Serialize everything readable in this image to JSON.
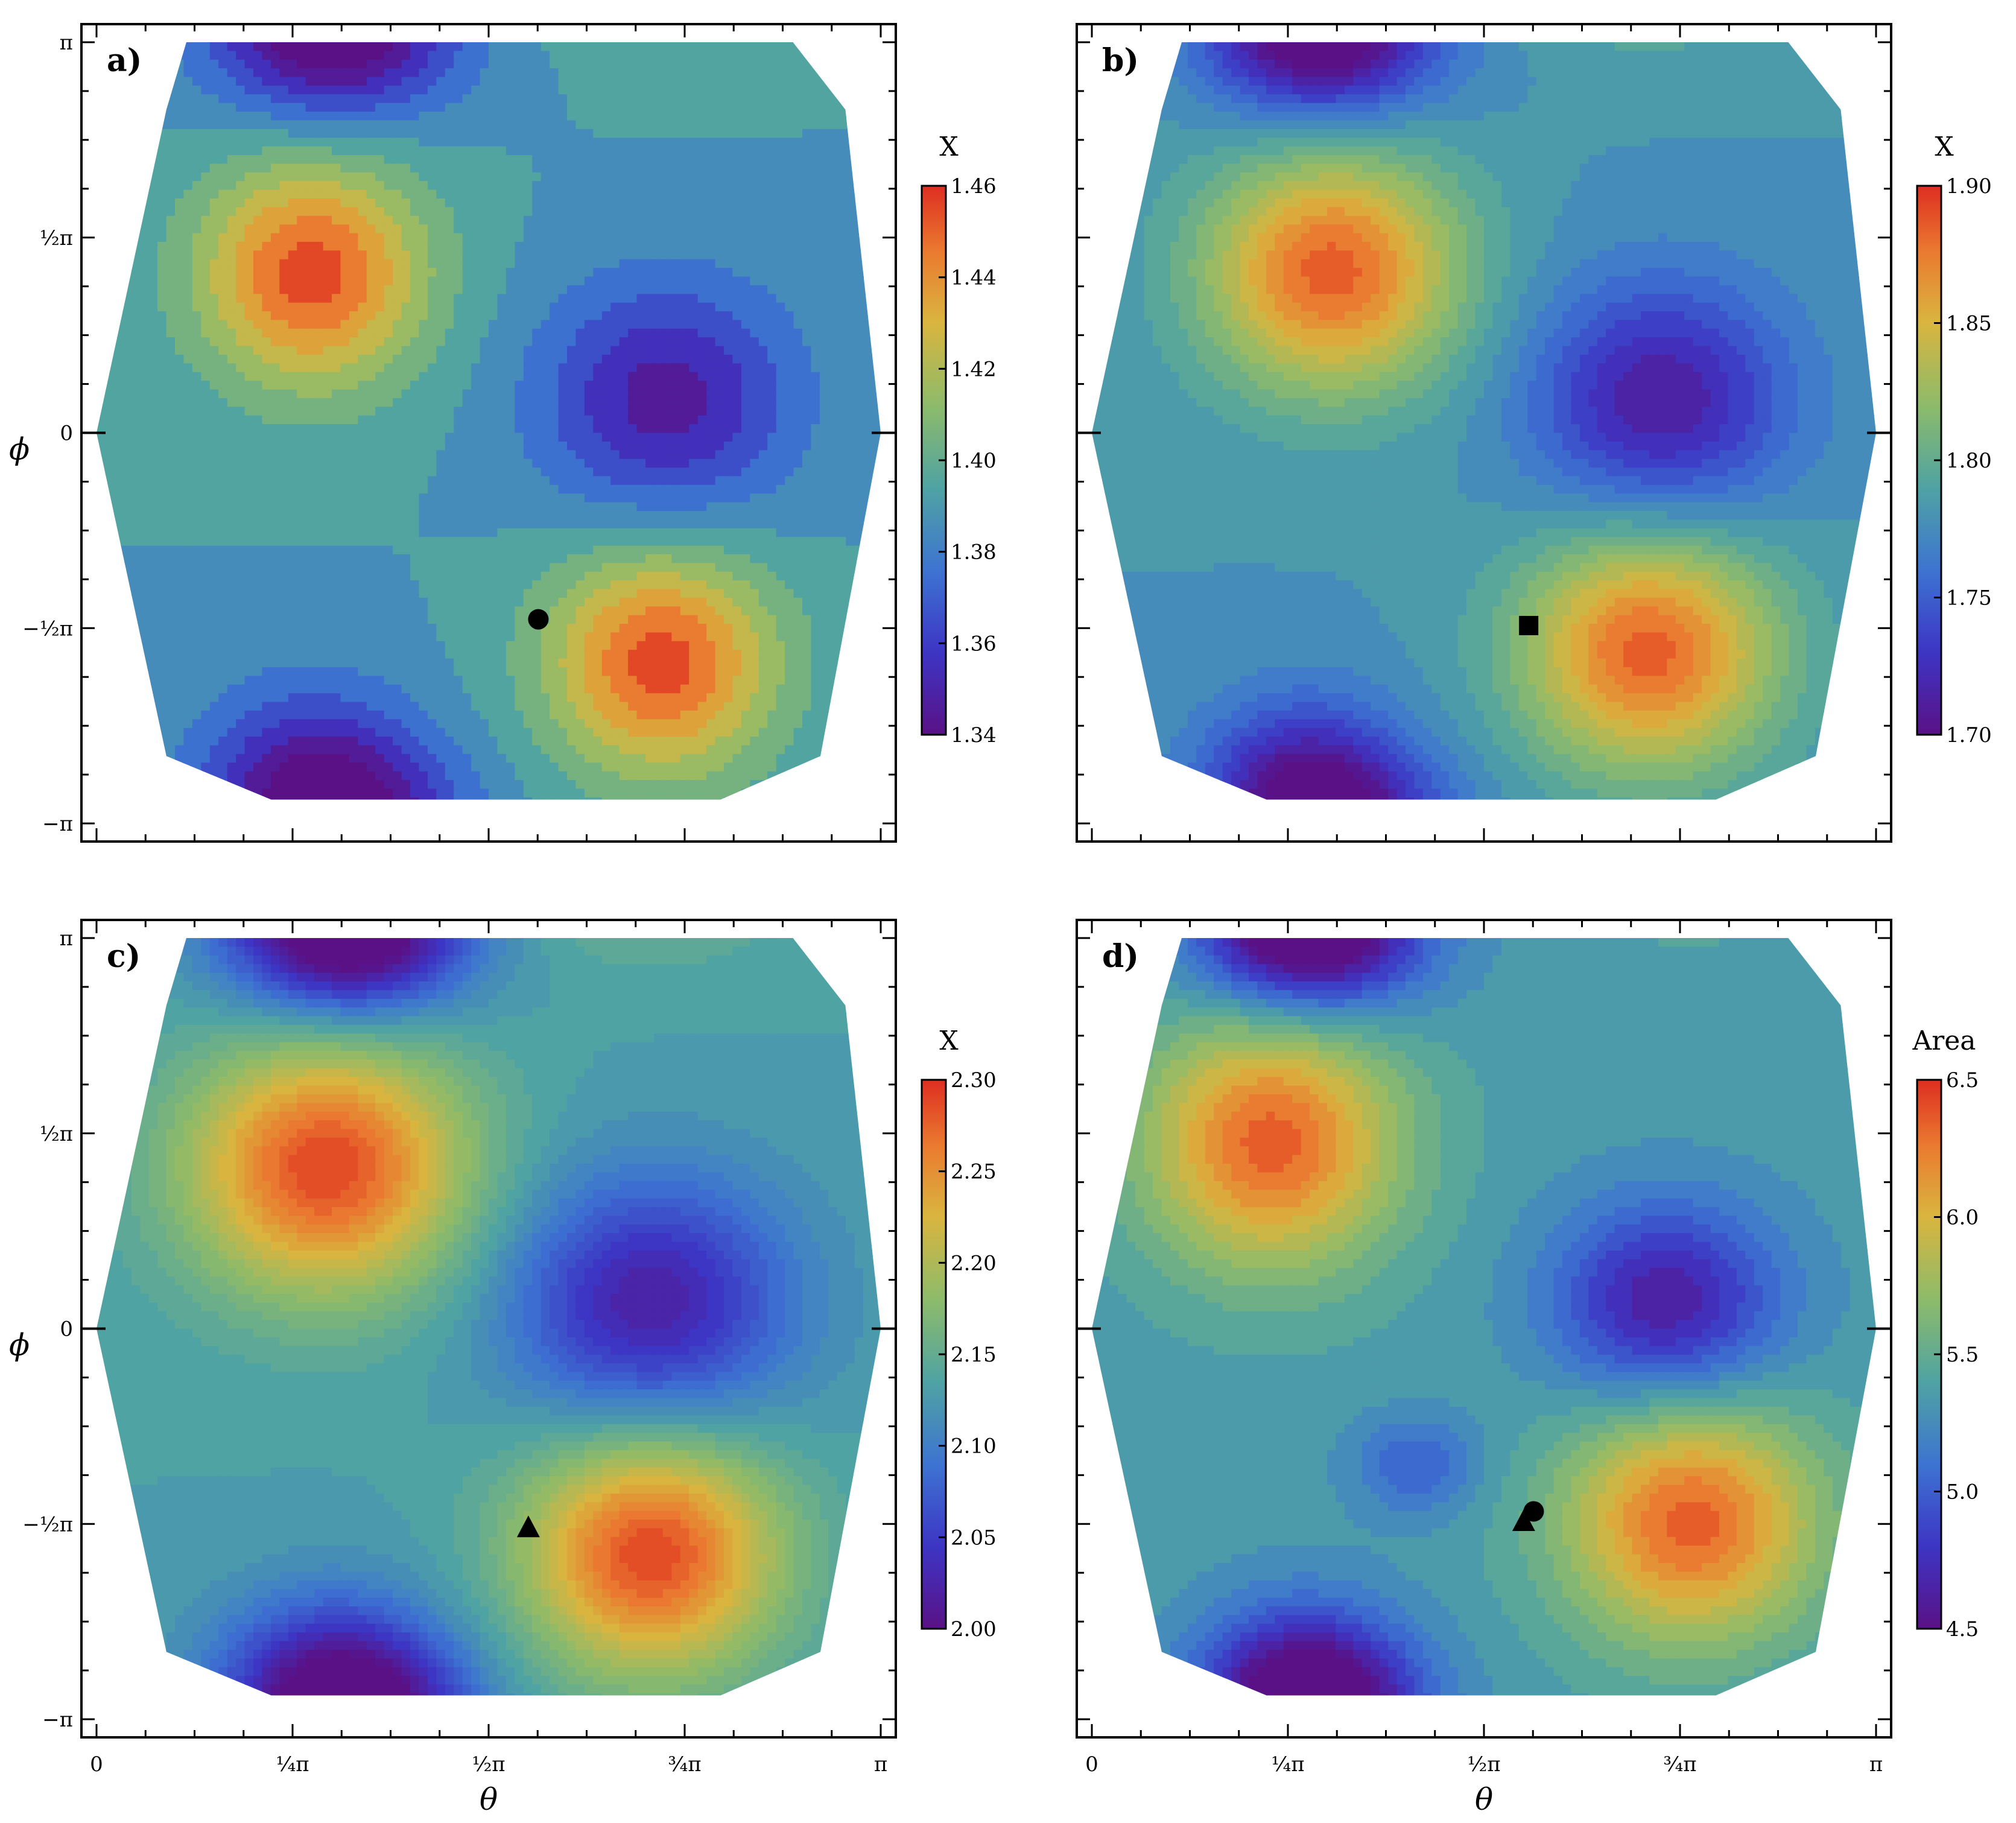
{
  "figure": {
    "ytick_labels": [
      "π",
      "½π",
      "0",
      "−½π",
      "−π"
    ],
    "xtick_labels": [
      "0",
      "¼π",
      "½π",
      "¾π",
      "π"
    ],
    "xlabel": "θ",
    "ylabel": "ϕ"
  },
  "chart_data": [
    {
      "type": "heatmap",
      "panel": "a)",
      "title": "a)",
      "xlabel": "θ",
      "ylabel": "ϕ",
      "xlim": [
        0,
        3.1416
      ],
      "ylim": [
        -3.1416,
        3.1416
      ],
      "colorbar": {
        "title": "X",
        "min": 1.34,
        "max": 1.46,
        "ticks": [
          "1.46",
          "1.44",
          "1.42",
          "1.40",
          "1.38",
          "1.36",
          "1.34"
        ],
        "levels": 12
      },
      "field": {
        "peaks": [
          {
            "theta": 0.86,
            "phi": 1.28,
            "value": 1.455,
            "sx": 0.45,
            "sy": 0.9
          },
          {
            "theta": 2.26,
            "phi": -1.84,
            "value": 1.455,
            "sx": 0.45,
            "sy": 0.9
          }
        ],
        "valleys": [
          {
            "theta": 2.28,
            "phi": 0.26,
            "value": 1.345,
            "sx": 0.5,
            "sy": 0.95
          },
          {
            "theta": 0.86,
            "phi": -2.85,
            "value": 1.345,
            "sx": 0.45,
            "sy": 0.8
          },
          {
            "theta": 1.05,
            "phi": 3.1416,
            "value": 1.36,
            "sx": 0.45,
            "sy": 0.6
          }
        ],
        "base": 1.39
      },
      "markers": [
        {
          "shape": "circle",
          "theta": 1.77,
          "phi": -1.5
        }
      ]
    },
    {
      "type": "heatmap",
      "panel": "b)",
      "title": "b)",
      "xlabel": "θ",
      "ylabel": "ϕ",
      "xlim": [
        0,
        3.1416
      ],
      "ylim": [
        -3.1416,
        3.1416
      ],
      "colorbar": {
        "title": "X",
        "min": 1.7,
        "max": 1.9,
        "ticks": [
          "1.90",
          "1.85",
          "1.80",
          "1.75",
          "1.70"
        ],
        "levels": 20
      },
      "field": {
        "peaks": [
          {
            "theta": 0.96,
            "phi": 1.3,
            "value": 1.885,
            "sx": 0.5,
            "sy": 0.95
          },
          {
            "theta": 2.23,
            "phi": -1.75,
            "value": 1.885,
            "sx": 0.5,
            "sy": 0.95
          }
        ],
        "valleys": [
          {
            "theta": 2.28,
            "phi": 0.25,
            "value": 1.71,
            "sx": 0.5,
            "sy": 0.95
          },
          {
            "theta": 0.85,
            "phi": -2.9,
            "value": 1.715,
            "sx": 0.4,
            "sy": 0.75
          },
          {
            "theta": 1.0,
            "phi": 3.1416,
            "value": 1.73,
            "sx": 0.45,
            "sy": 0.6
          }
        ],
        "base": 1.78
      },
      "markers": [
        {
          "shape": "square",
          "theta": 1.75,
          "phi": -1.55
        }
      ]
    },
    {
      "type": "heatmap",
      "panel": "c)",
      "title": "c)",
      "xlabel": "θ",
      "ylabel": "ϕ",
      "xlim": [
        0,
        3.1416
      ],
      "ylim": [
        -3.1416,
        3.1416
      ],
      "colorbar": {
        "title": "X",
        "min": 2.0,
        "max": 2.3,
        "ticks": [
          "2.30",
          "2.25",
          "2.20",
          "2.15",
          "2.10",
          "2.05",
          "2.00"
        ],
        "levels": 30
      },
      "field": {
        "peaks": [
          {
            "theta": 0.92,
            "phi": 1.3,
            "value": 2.29,
            "sx": 0.55,
            "sy": 1.0
          },
          {
            "theta": 2.22,
            "phi": -1.8,
            "value": 2.29,
            "sx": 0.5,
            "sy": 0.95
          }
        ],
        "valleys": [
          {
            "theta": 2.22,
            "phi": 0.2,
            "value": 2.02,
            "sx": 0.55,
            "sy": 1.0
          },
          {
            "theta": 0.95,
            "phi": -2.9,
            "value": 2.025,
            "sx": 0.45,
            "sy": 0.75
          },
          {
            "theta": 1.05,
            "phi": 3.1416,
            "value": 2.04,
            "sx": 0.45,
            "sy": 0.6
          }
        ],
        "base": 2.13
      },
      "markers": [
        {
          "shape": "triangle",
          "theta": 1.73,
          "phi": -1.6
        }
      ]
    },
    {
      "type": "heatmap",
      "panel": "d)",
      "title": "d)",
      "xlabel": "θ",
      "ylabel": "ϕ",
      "xlim": [
        0,
        3.1416
      ],
      "ylim": [
        -3.1416,
        3.1416
      ],
      "colorbar": {
        "title": "Area",
        "min": 4.5,
        "max": 6.5,
        "ticks": [
          "6.5",
          "6.0",
          "5.5",
          "5.0",
          "4.5"
        ],
        "levels": 20
      },
      "field": {
        "peaks": [
          {
            "theta": 0.72,
            "phi": 1.5,
            "value": 6.35,
            "sx": 0.5,
            "sy": 1.0
          },
          {
            "theta": 2.4,
            "phi": -1.55,
            "value": 6.35,
            "sx": 0.5,
            "sy": 0.95
          }
        ],
        "valleys": [
          {
            "theta": 2.3,
            "phi": 0.2,
            "value": 4.6,
            "sx": 0.45,
            "sy": 0.8
          },
          {
            "theta": 0.85,
            "phi": -2.9,
            "value": 4.6,
            "sx": 0.4,
            "sy": 0.7
          },
          {
            "theta": 0.9,
            "phi": 3.1416,
            "value": 4.75,
            "sx": 0.45,
            "sy": 0.6
          },
          {
            "theta": 1.3,
            "phi": -1.1,
            "value": 5.0,
            "sx": 0.25,
            "sy": 0.4
          }
        ],
        "base": 5.35
      },
      "markers": [
        {
          "shape": "circle",
          "theta": 1.77,
          "phi": -1.47
        },
        {
          "shape": "triangle",
          "theta": 1.73,
          "phi": -1.55
        }
      ]
    }
  ]
}
